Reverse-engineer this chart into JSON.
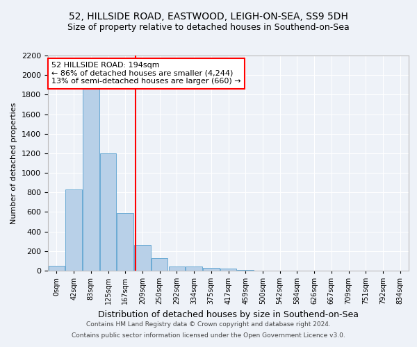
{
  "title1": "52, HILLSIDE ROAD, EASTWOOD, LEIGH-ON-SEA, SS9 5DH",
  "title2": "Size of property relative to detached houses in Southend-on-Sea",
  "xlabel": "Distribution of detached houses by size in Southend-on-Sea",
  "ylabel": "Number of detached properties",
  "footer1": "Contains HM Land Registry data © Crown copyright and database right 2024.",
  "footer2": "Contains public sector information licensed under the Open Government Licence v3.0.",
  "bar_labels": [
    "0sqm",
    "42sqm",
    "83sqm",
    "125sqm",
    "167sqm",
    "209sqm",
    "250sqm",
    "292sqm",
    "334sqm",
    "375sqm",
    "417sqm",
    "459sqm",
    "500sqm",
    "542sqm",
    "584sqm",
    "626sqm",
    "667sqm",
    "709sqm",
    "751sqm",
    "792sqm",
    "834sqm"
  ],
  "bar_values": [
    50,
    830,
    1900,
    1200,
    590,
    260,
    125,
    40,
    40,
    30,
    20,
    5,
    0,
    0,
    0,
    0,
    0,
    0,
    0,
    0,
    0
  ],
  "bar_color": "#b8d0e8",
  "bar_edge_color": "#6aaad4",
  "vline_pos": 4.6,
  "vline_color": "red",
  "annotation_text": "52 HILLSIDE ROAD: 194sqm\n← 86% of detached houses are smaller (4,244)\n13% of semi-detached houses are larger (660) →",
  "ylim": [
    0,
    2200
  ],
  "yticks": [
    0,
    200,
    400,
    600,
    800,
    1000,
    1200,
    1400,
    1600,
    1800,
    2000,
    2200
  ],
  "background_color": "#eef2f8",
  "grid_color": "#ffffff",
  "title1_fontsize": 10,
  "title2_fontsize": 9,
  "ylabel_fontsize": 8,
  "xlabel_fontsize": 9,
  "annot_fontsize": 8,
  "footer_fontsize": 6.5
}
